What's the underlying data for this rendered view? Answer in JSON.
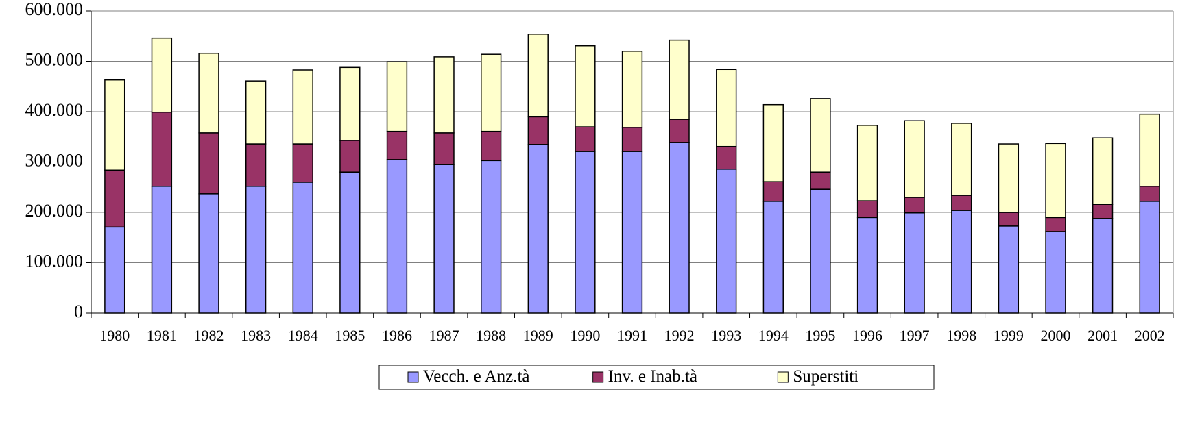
{
  "chart_data": {
    "type": "stacked_bar",
    "categories": [
      "1980",
      "1981",
      "1982",
      "1983",
      "1984",
      "1985",
      "1986",
      "1987",
      "1988",
      "1989",
      "1990",
      "1991",
      "1992",
      "1993",
      "1994",
      "1995",
      "1996",
      "1997",
      "1998",
      "1999",
      "2000",
      "2001",
      "2002"
    ],
    "series": [
      {
        "name": "Vecch. e Anz.tà",
        "color": "#9999ff",
        "values": [
          171000,
          252000,
          237000,
          252000,
          260000,
          280000,
          305000,
          295000,
          303000,
          335000,
          321000,
          321000,
          339000,
          286000,
          222000,
          246000,
          190000,
          199000,
          204000,
          173000,
          162000,
          188000,
          222000
        ]
      },
      {
        "name": "Inv. e Inab.tà",
        "color": "#993366",
        "values": [
          113000,
          147000,
          121000,
          84000,
          76000,
          63000,
          56000,
          63000,
          58000,
          55000,
          49000,
          48000,
          46000,
          45000,
          39000,
          34000,
          33000,
          31000,
          30000,
          27000,
          28000,
          28000,
          30000
        ]
      },
      {
        "name": "Superstiti",
        "color": "#ffffcc",
        "values": [
          179000,
          147000,
          158000,
          125000,
          147000,
          145000,
          138000,
          151000,
          153000,
          164000,
          161000,
          151000,
          157000,
          153000,
          153000,
          146000,
          150000,
          152000,
          143000,
          136000,
          147000,
          132000,
          143000
        ]
      }
    ],
    "ylim": [
      0,
      600000
    ],
    "yticks": [
      0,
      {
        "value": 100000,
        "label": "100.000"
      },
      {
        "value": 200000,
        "label": "200.000"
      },
      {
        "value": 300000,
        "label": "300.000"
      },
      {
        "value": 400000,
        "label": "400.000"
      },
      {
        "value": 500000,
        "label": "500.000"
      },
      {
        "value": 600000,
        "label": "600.000"
      }
    ],
    "grid": true,
    "legend": "bottom"
  }
}
